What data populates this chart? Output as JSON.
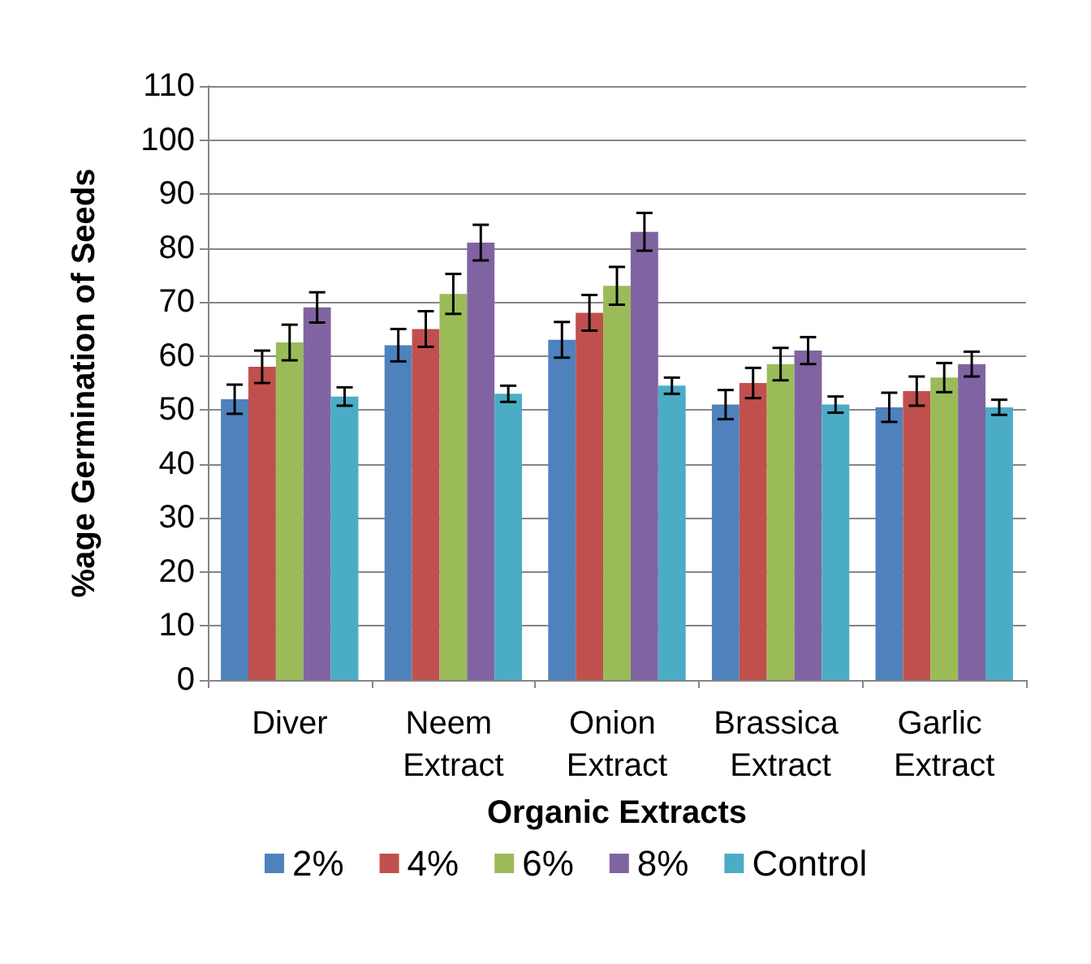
{
  "chart_data": {
    "type": "bar",
    "xlabel": "Organic Extracts",
    "ylabel": "%age Germination of Seeds",
    "categories": [
      "Diver",
      "Neem Extract",
      "Onion Extract",
      "Brassica Extract",
      "Garlic Extract"
    ],
    "series": [
      {
        "name": "2%",
        "color": "#4f81bd",
        "values": [
          52,
          62,
          63,
          51,
          50.5
        ],
        "errors": [
          2.7,
          3,
          3.3,
          2.7,
          2.7
        ]
      },
      {
        "name": "4%",
        "color": "#c0504d",
        "values": [
          58,
          65,
          68,
          55,
          53.5
        ],
        "errors": [
          3,
          3.3,
          3.3,
          2.8,
          2.7
        ]
      },
      {
        "name": "6%",
        "color": "#9bbb59",
        "values": [
          62.5,
          71.5,
          73,
          58.5,
          56
        ],
        "errors": [
          3.3,
          3.7,
          3.5,
          3,
          2.7
        ]
      },
      {
        "name": "8%",
        "color": "#8064a2",
        "values": [
          69,
          81,
          83,
          61,
          58.5
        ],
        "errors": [
          2.8,
          3.3,
          3.5,
          2.5,
          2.3
        ]
      },
      {
        "name": "Control",
        "color": "#4bacc6",
        "values": [
          52.5,
          53,
          54.5,
          51,
          50.5
        ],
        "errors": [
          1.7,
          1.5,
          1.5,
          1.5,
          1.4
        ]
      }
    ],
    "ylim": [
      0,
      110
    ],
    "yticks": [
      0,
      10,
      20,
      30,
      40,
      50,
      60,
      70,
      80,
      90,
      100,
      110
    ],
    "grid": "y",
    "legend": "bottom"
  }
}
